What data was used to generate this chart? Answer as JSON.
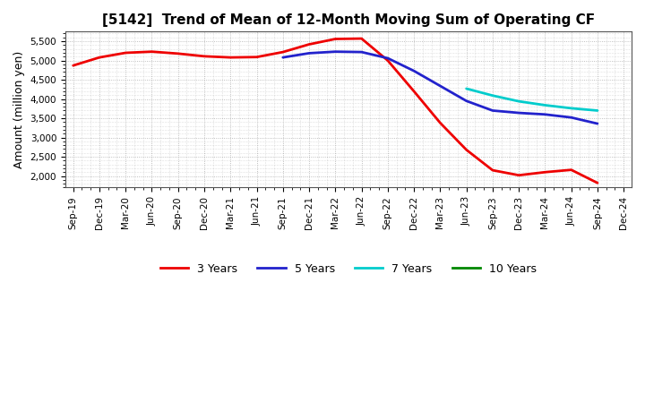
{
  "title": "[5142]  Trend of Mean of 12-Month Moving Sum of Operating CF",
  "ylabel": "Amount (million yen)",
  "background_color": "#ffffff",
  "grid_color": "#999999",
  "x_labels": [
    "Sep-19",
    "Dec-19",
    "Mar-20",
    "Jun-20",
    "Sep-20",
    "Dec-20",
    "Mar-21",
    "Jun-21",
    "Sep-21",
    "Dec-21",
    "Mar-22",
    "Jun-22",
    "Sep-22",
    "Dec-22",
    "Mar-23",
    "Jun-23",
    "Sep-23",
    "Dec-23",
    "Mar-24",
    "Jun-24",
    "Sep-24",
    "Dec-24"
  ],
  "series": {
    "3 Years": {
      "color": "#ee0000",
      "linewidth": 2.0,
      "data": [
        4870,
        5080,
        5200,
        5230,
        5180,
        5110,
        5080,
        5090,
        5220,
        5420,
        5560,
        5570,
        5000,
        4200,
        3380,
        2680,
        2150,
        2020,
        2100,
        2160,
        1820,
        null
      ]
    },
    "5 Years": {
      "color": "#2222cc",
      "linewidth": 2.0,
      "data": [
        null,
        null,
        null,
        null,
        null,
        null,
        null,
        null,
        5080,
        5190,
        5230,
        5220,
        5060,
        4730,
        4340,
        3950,
        3700,
        3640,
        3600,
        3520,
        3360,
        null
      ]
    },
    "7 Years": {
      "color": "#00cccc",
      "linewidth": 2.0,
      "data": [
        null,
        null,
        null,
        null,
        null,
        null,
        null,
        null,
        null,
        null,
        null,
        null,
        null,
        null,
        null,
        4270,
        4090,
        3940,
        3840,
        3760,
        3700,
        null
      ]
    },
    "10 Years": {
      "color": "#008800",
      "linewidth": 2.0,
      "data": [
        null,
        null,
        null,
        null,
        null,
        null,
        null,
        null,
        null,
        null,
        null,
        null,
        null,
        null,
        null,
        null,
        null,
        null,
        null,
        null,
        null,
        null
      ]
    }
  },
  "ylim": [
    1700,
    5750
  ],
  "yticks": [
    2000,
    2500,
    3000,
    3500,
    4000,
    4500,
    5000,
    5500
  ],
  "legend_labels": [
    "3 Years",
    "5 Years",
    "7 Years",
    "10 Years"
  ],
  "legend_colors": [
    "#ee0000",
    "#2222cc",
    "#00cccc",
    "#008800"
  ],
  "title_fontsize": 11,
  "tick_fontsize": 7.5,
  "ylabel_fontsize": 9
}
